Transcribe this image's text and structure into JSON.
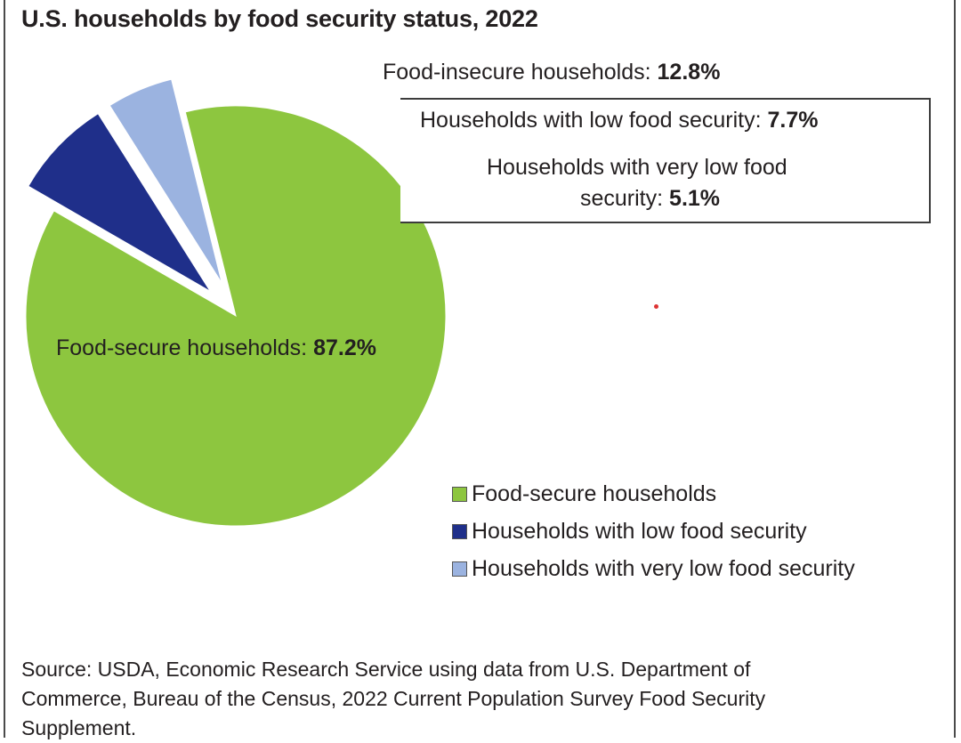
{
  "title": "U.S. households by food security status, 2022",
  "labels": {
    "food_insecure_text": "Food-insecure households:",
    "food_insecure_value": "12.8%",
    "low_text": "Households with low food security:",
    "low_value": "7.7%",
    "very_low_text_line1": "Households with very low food",
    "very_low_text_line2": "security:",
    "very_low_value": "5.1%",
    "secure_text": "Food-secure households:",
    "secure_value": "87.2%"
  },
  "legend": [
    {
      "label": "Food-secure households",
      "color": "#8dc63f"
    },
    {
      "label": "Households with low food security",
      "color": "#1f2f8a"
    },
    {
      "label": "Households with very low food security",
      "color": "#9bb3e0"
    }
  ],
  "source": {
    "line1": "Source: USDA, Economic Research Service using data from U.S. Department of",
    "line2": "Commerce, Bureau of the Census, 2022 Current Population Survey Food Security",
    "line3": "Supplement."
  },
  "chart_data": {
    "type": "pie",
    "title": "U.S. households by food security status, 2022",
    "categories": [
      "Food-secure households",
      "Households with low food security",
      "Households with very low food security"
    ],
    "values": [
      87.2,
      7.7,
      5.1
    ],
    "colors": [
      "#8dc63f",
      "#1f2f8a",
      "#9bb3e0"
    ],
    "group": {
      "label": "Food-insecure households",
      "value": 12.8
    },
    "legend_position": "bottom-right"
  }
}
